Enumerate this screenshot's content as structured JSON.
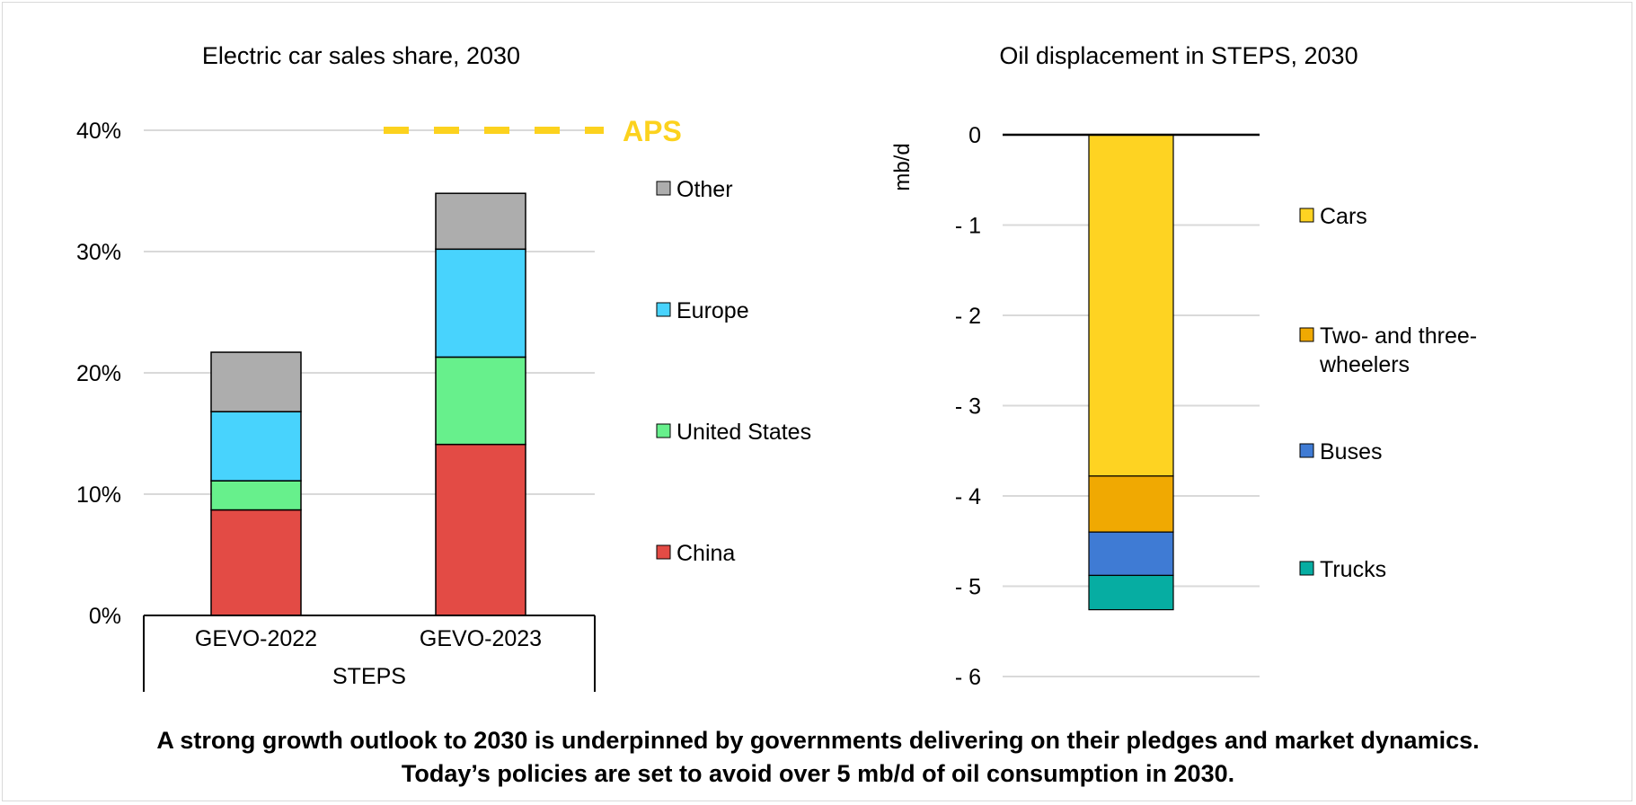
{
  "chart_data": [
    {
      "type": "bar",
      "stacked": true,
      "title": "Electric car sales share, 2030",
      "categories": [
        "GEVO-2022",
        "GEVO-2023"
      ],
      "category_group": "STEPS",
      "ylim": [
        0,
        40
      ],
      "ytick_values": [
        0,
        10,
        20,
        30,
        40
      ],
      "ytick_labels": [
        "0%",
        "10%",
        "20%",
        "30%",
        "40%"
      ],
      "grid": true,
      "legend_position": "right",
      "series": [
        {
          "name": "China",
          "color": "#e34b45",
          "values": [
            8.7,
            14.1
          ]
        },
        {
          "name": "United States",
          "color": "#67f08c",
          "values": [
            2.4,
            7.2
          ]
        },
        {
          "name": "Europe",
          "color": "#48d3fd",
          "values": [
            5.7,
            8.9
          ]
        },
        {
          "name": "Other",
          "color": "#adadad",
          "values": [
            4.9,
            4.6
          ]
        }
      ],
      "reference_line": {
        "label": "APS",
        "value": 40,
        "color": "#fcd21e",
        "style": "dashed"
      }
    },
    {
      "type": "bar",
      "stacked": true,
      "title": "Oil displacement in STEPS, 2030",
      "ylabel": "mb/d",
      "ylim": [
        -6,
        0
      ],
      "ytick_values": [
        0,
        -1,
        -2,
        -3,
        -4,
        -5,
        -6
      ],
      "ytick_labels": [
        "0",
        "- 1",
        "- 2",
        "- 3",
        "- 4",
        "- 5",
        "- 6"
      ],
      "grid": true,
      "legend_position": "right",
      "series": [
        {
          "name": "Cars",
          "color": "#fed322",
          "values": [
            -3.78
          ]
        },
        {
          "name": "Two- and three-wheelers",
          "legend_lines": [
            "Two- and three-",
            "wheelers"
          ],
          "color": "#f0a902",
          "values": [
            -0.62
          ]
        },
        {
          "name": "Buses",
          "color": "#3f7bd4",
          "values": [
            -0.48
          ]
        },
        {
          "name": "Trucks",
          "color": "#06ada2",
          "values": [
            -0.38
          ]
        }
      ]
    }
  ],
  "caption": {
    "line1": "A strong growth outlook to 2030 is underpinned by governments delivering on their pledges and market dynamics.",
    "line2": "Today’s policies are set to avoid over 5 mb/d of oil consumption in 2030."
  }
}
